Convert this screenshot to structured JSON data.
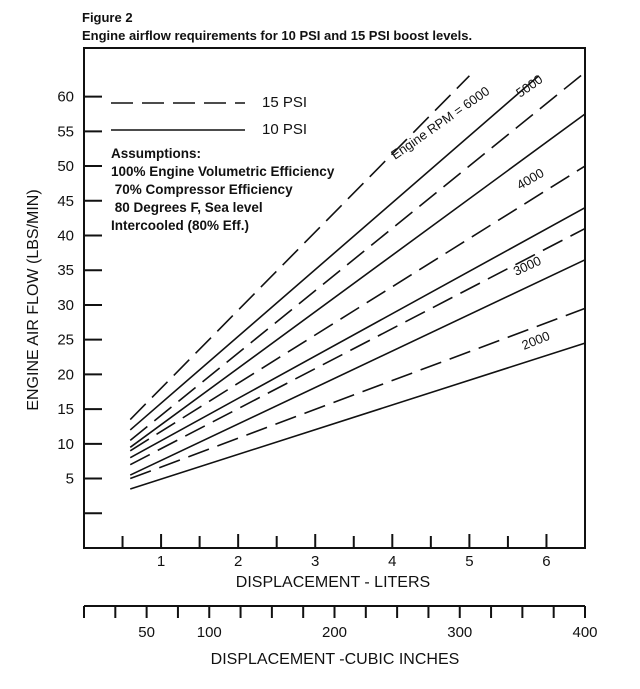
{
  "chart_data": {
    "type": "line",
    "title": "Figure 2",
    "subtitle": "Engine airflow requirements for 10 PSI and 15 PSI boost levels.",
    "ylabel": "ENGINE AIR FLOW (LBS/MIN)",
    "xlabel": "DISPLACEMENT - LITERS",
    "x2label": "DISPLACEMENT -CUBIC INCHES",
    "xlim": [
      0,
      6.5
    ],
    "ylim": [
      -5,
      67
    ],
    "x_ticks": [
      "1",
      "2",
      "3",
      "4",
      "5",
      "6"
    ],
    "x2_ticks": [
      "50",
      "100",
      "200",
      "300",
      "400"
    ],
    "y_ticks": [
      "5",
      "10",
      "15",
      "20",
      "25",
      "30",
      "35",
      "40",
      "45",
      "50",
      "55",
      "60"
    ],
    "legend": [
      {
        "name": "15 PSI",
        "style": "dashed"
      },
      {
        "name": "10 PSI",
        "style": "solid"
      }
    ],
    "assumptions": [
      "Assumptions:",
      "100% Engine Volumetric Efficiency",
      " 70% Compressor Efficiency",
      " 80 Degrees F, Sea level",
      "Intercooled (80% Eff.)"
    ],
    "rpm_labels": [
      "Engine RPM = 6000",
      "5000",
      "4000",
      "3000",
      "2000"
    ],
    "series": [
      {
        "name": "10 PSI 2000",
        "style": "solid",
        "rpm": 2000,
        "x": [
          0.6,
          6.5
        ],
        "y": [
          3.5,
          24.5
        ]
      },
      {
        "name": "15 PSI 2000",
        "style": "dashed",
        "rpm": 2000,
        "x": [
          0.6,
          6.5
        ],
        "y": [
          5.0,
          29.5
        ]
      },
      {
        "name": "10 PSI 3000",
        "style": "solid",
        "rpm": 3000,
        "x": [
          0.6,
          6.5
        ],
        "y": [
          5.5,
          36.5
        ]
      },
      {
        "name": "15 PSI 3000",
        "style": "dashed",
        "rpm": 3000,
        "x": [
          0.6,
          6.5
        ],
        "y": [
          7.0,
          41.0
        ]
      },
      {
        "name": "10 PSI 4000",
        "style": "solid",
        "rpm": 4000,
        "x": [
          0.6,
          6.5
        ],
        "y": [
          8.0,
          44.0
        ]
      },
      {
        "name": "15 PSI 4000",
        "style": "dashed",
        "rpm": 4000,
        "x": [
          0.6,
          6.5
        ],
        "y": [
          9.0,
          50.0
        ]
      },
      {
        "name": "10 PSI 5000",
        "style": "solid",
        "rpm": 5000,
        "x": [
          0.6,
          6.5
        ],
        "y": [
          9.5,
          57.5
        ]
      },
      {
        "name": "15 PSI 5000",
        "style": "dashed",
        "rpm": 5000,
        "x": [
          0.6,
          6.5
        ],
        "y": [
          10.5,
          63.5
        ]
      },
      {
        "name": "10 PSI 6000",
        "style": "solid",
        "rpm": 6000,
        "x": [
          0.6,
          5.9
        ],
        "y": [
          12.0,
          63.0
        ]
      },
      {
        "name": "15 PSI 6000",
        "style": "dashed",
        "rpm": 6000,
        "x": [
          0.6,
          5.0
        ],
        "y": [
          13.5,
          63.0
        ]
      }
    ]
  }
}
